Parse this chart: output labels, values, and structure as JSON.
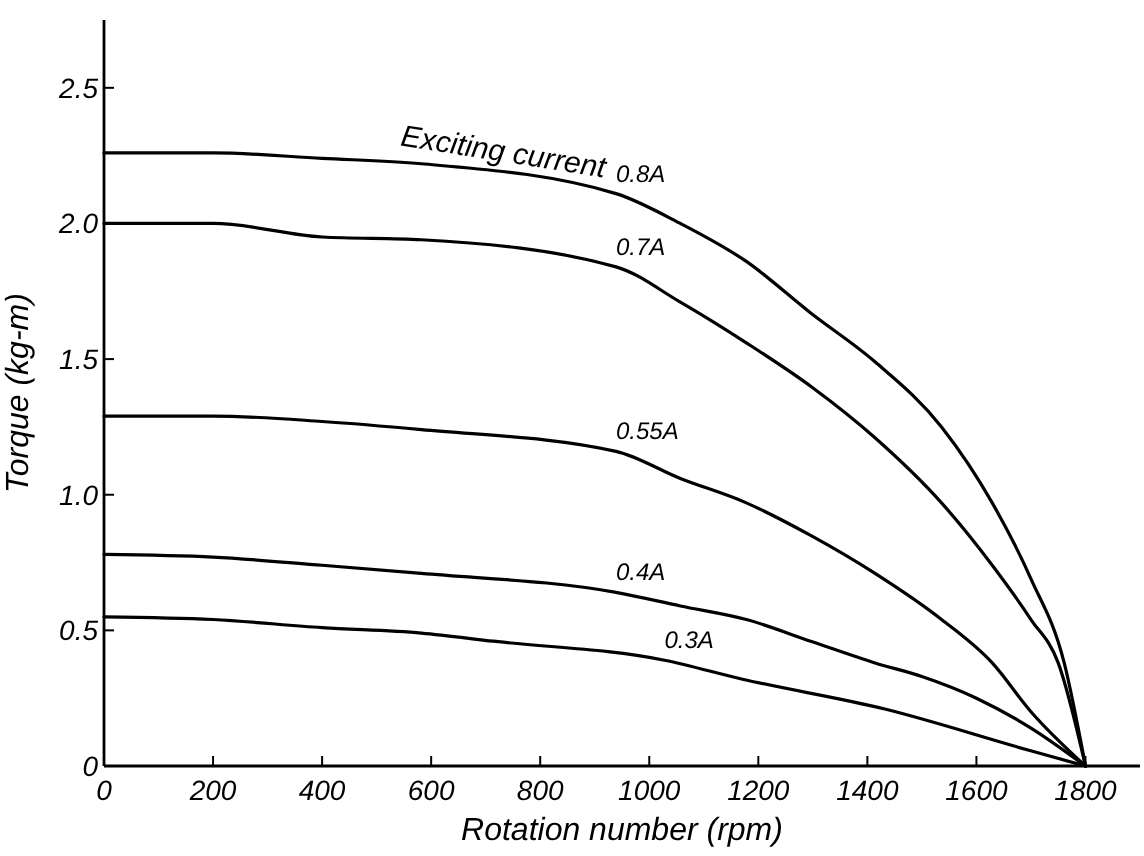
{
  "chart_data": {
    "type": "line",
    "xlabel": "Rotation number (rpm)",
    "ylabel": "Torque (kg-m)",
    "xlim": [
      0,
      1900
    ],
    "ylim": [
      0,
      2.75
    ],
    "xticks": [
      0,
      200,
      400,
      600,
      800,
      1000,
      1200,
      1400,
      1600,
      1800
    ],
    "yticks": [
      0,
      0.5,
      {
        "value": 1,
        "label": "1.0"
      },
      1.5,
      {
        "value": 2,
        "label": "2.0"
      },
      2.5
    ],
    "grid": false,
    "marker": "none",
    "line_style": "solid",
    "annotations": [
      "Exciting current"
    ],
    "series": [
      {
        "name": "0.8A",
        "color": "#000000",
        "x": [
          0,
          200,
          400,
          582,
          939,
          1057,
          1178,
          1296,
          1414,
          1536,
          1629,
          1700,
          1761,
          1800
        ],
        "values": [
          2.26,
          2.26,
          2.24,
          2.22,
          2.11,
          2.0,
          1.86,
          1.67,
          1.49,
          1.25,
          0.97,
          0.69,
          0.38,
          0
        ]
      },
      {
        "name": "0.7A",
        "color": "#000000",
        "x": [
          0,
          200,
          400,
          582,
          939,
          1057,
          1178,
          1296,
          1414,
          1536,
          1629,
          1700,
          1750,
          1800
        ],
        "values": [
          2.0,
          2.0,
          1.95,
          1.94,
          1.84,
          1.71,
          1.56,
          1.4,
          1.21,
          0.97,
          0.74,
          0.54,
          0.38,
          0
        ]
      },
      {
        "name": "0.55A",
        "color": "#000000",
        "x": [
          0,
          200,
          400,
          582,
          939,
          1057,
          1178,
          1296,
          1414,
          1536,
          1629,
          1700,
          1800
        ],
        "values": [
          1.29,
          1.29,
          1.27,
          1.24,
          1.16,
          1.06,
          0.97,
          0.85,
          0.71,
          0.54,
          0.38,
          0.2,
          0
        ]
      },
      {
        "name": "0.4A",
        "color": "#000000",
        "x": [
          0,
          200,
          400,
          582,
          939,
          1057,
          1178,
          1296,
          1414,
          1500,
          1600,
          1700,
          1800
        ],
        "values": [
          0.78,
          0.77,
          0.74,
          0.71,
          0.64,
          0.59,
          0.54,
          0.46,
          0.38,
          0.33,
          0.25,
          0.14,
          0
        ]
      },
      {
        "name": "0.3A",
        "color": "#000000",
        "x": [
          0,
          200,
          400,
          582,
          714,
          1028,
          1171,
          1432,
          1693,
          1800
        ],
        "values": [
          0.55,
          0.54,
          0.51,
          0.49,
          0.46,
          0.39,
          0.32,
          0.21,
          0.06,
          0
        ]
      }
    ]
  }
}
